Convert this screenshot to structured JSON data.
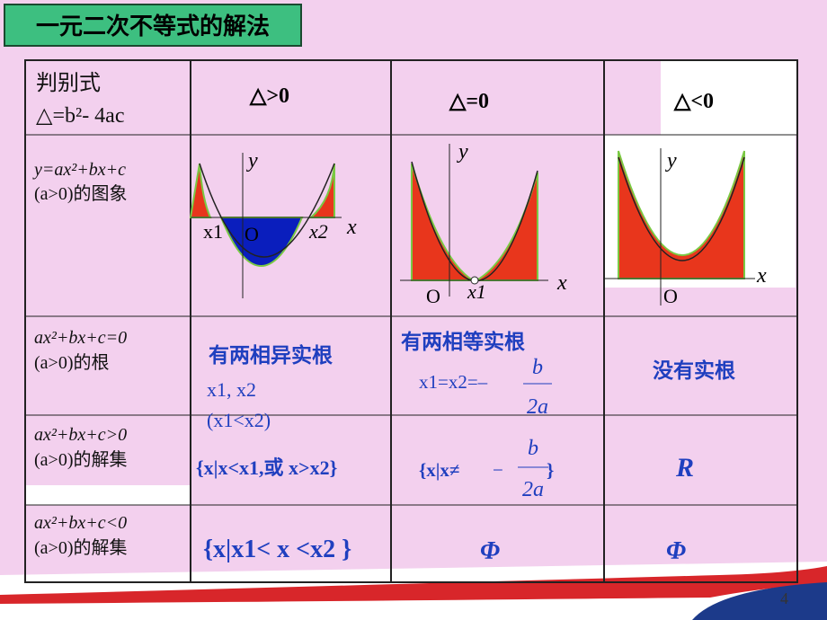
{
  "title": "一元二次不等式的解法",
  "discriminant": {
    "label": "判别式",
    "formula": "△=b²- 4ac"
  },
  "cases": [
    "△>0",
    "△=0",
    "△<0"
  ],
  "graph_row": {
    "label": [
      "y=ax²+bx+c",
      "(a>0)的图象"
    ],
    "graphs": [
      {
        "labels": [
          "y",
          "x",
          "x1",
          "O",
          "x2"
        ]
      },
      {
        "labels": [
          "y",
          "x",
          "O",
          "x1"
        ]
      },
      {
        "labels": [
          "y",
          "x",
          "O"
        ]
      }
    ]
  },
  "roots": {
    "label": [
      "ax²+bx+c=0",
      "(a>0)的根"
    ],
    "distinct": {
      "title": "有两相异实根",
      "lines": [
        "x1, x2",
        "(x1<x2)"
      ]
    },
    "equal": {
      "title": "有两相等实根",
      "prefix": "x1=x2=–",
      "numerator": "b",
      "denominator": "2a"
    },
    "none": "没有实根"
  },
  "greater": {
    "label": [
      "ax²+bx+c>0",
      "(a>0)的解集"
    ],
    "distinct": "{x|x<x1,或 x>x2}",
    "equal": {
      "prefix": "{x|x≠",
      "minus": "−",
      "numerator": "b",
      "denominator": "2a",
      "suffix": "}"
    },
    "none": "R"
  },
  "less": {
    "label": [
      "ax²+bx+c<0",
      "(a>0)的解集"
    ],
    "cells": [
      "{x|x1< x <x2 }",
      "Φ",
      "Φ"
    ]
  },
  "page_number": "4"
}
